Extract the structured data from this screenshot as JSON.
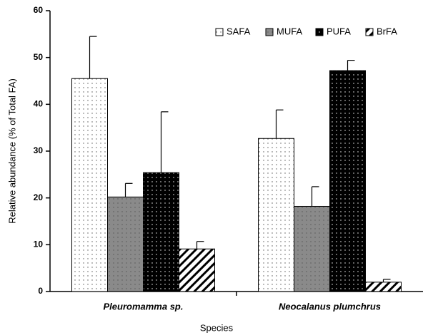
{
  "chart_data": {
    "type": "bar",
    "x_label": "Species",
    "y_label": "Relative abundance (% of Total FA)",
    "categories": [
      "Pleuromamma sp.",
      "Neocalanus plumchrus"
    ],
    "series": [
      {
        "name": "SAFA",
        "color": "#ffffff",
        "pattern": "dots",
        "values": [
          45.5,
          32.7
        ],
        "errors": [
          9.0,
          6.1
        ]
      },
      {
        "name": "MUFA",
        "color": "#8a8a8a",
        "pattern": "dots",
        "values": [
          20.2,
          18.2
        ],
        "errors": [
          2.9,
          4.2
        ]
      },
      {
        "name": "PUFA",
        "color": "#000000",
        "pattern": "dots",
        "values": [
          25.4,
          47.2
        ],
        "errors": [
          13.0,
          2.2
        ]
      },
      {
        "name": "BrFA",
        "color": "#ffffff",
        "pattern": "hatch",
        "values": [
          9.1,
          2.0
        ],
        "errors": [
          1.6,
          0.6
        ]
      }
    ],
    "ylim": [
      0,
      60
    ],
    "yticks": [
      0,
      10,
      20,
      30,
      40,
      50,
      60
    ],
    "legend": "upper right",
    "grid": false
  }
}
